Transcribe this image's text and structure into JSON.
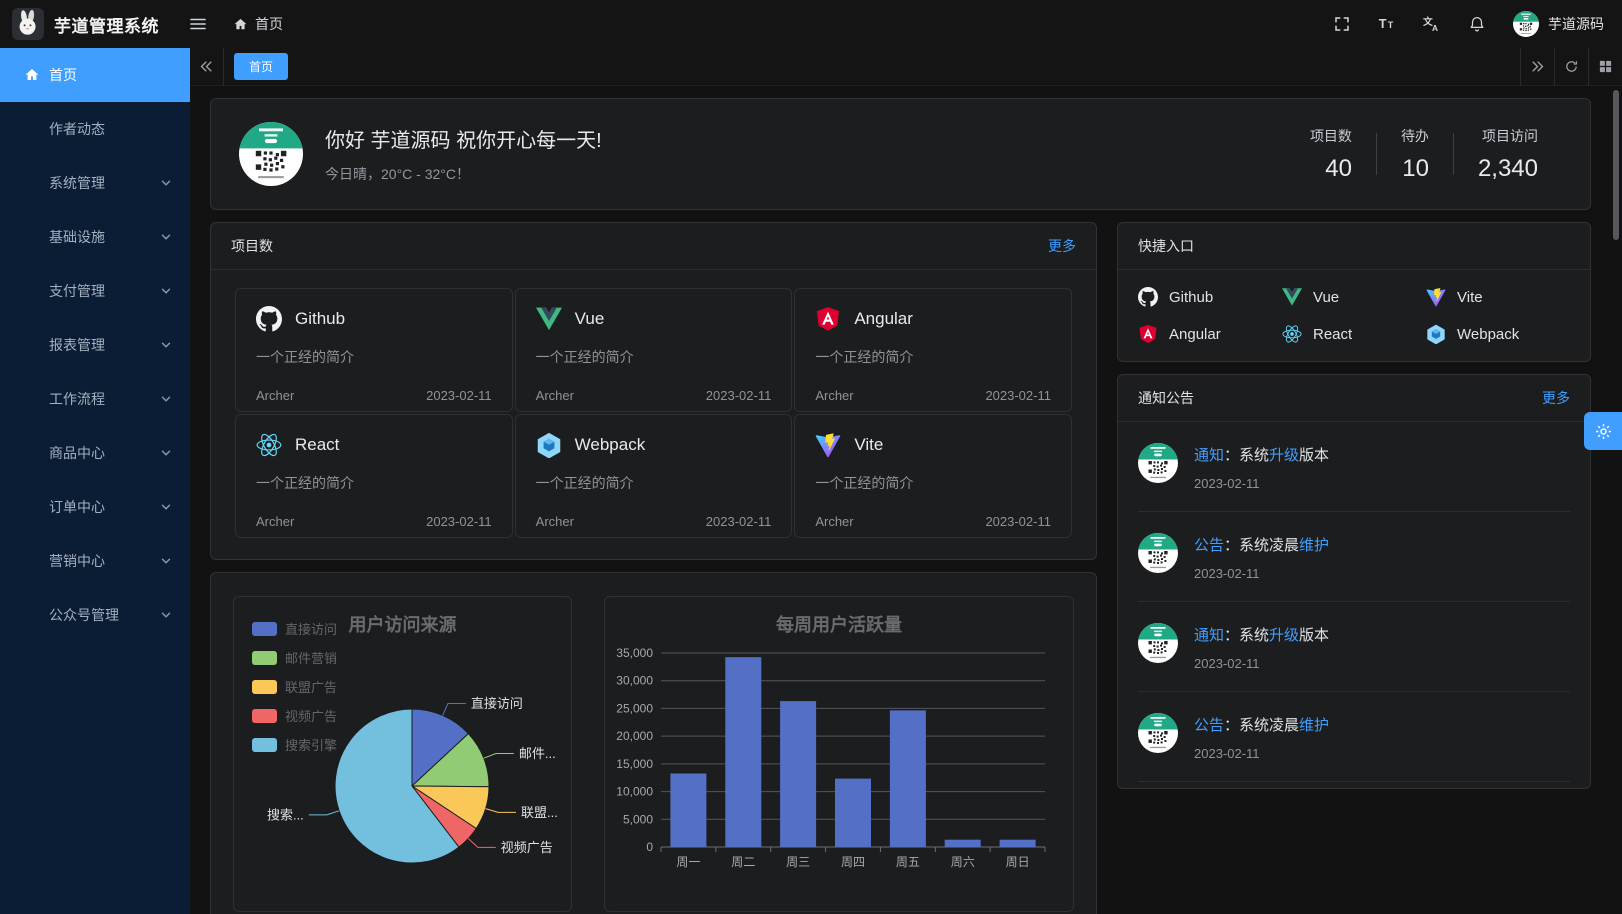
{
  "colors": {
    "accent": "#409eff",
    "sidebar_bg": "#0b1d35",
    "card_bg": "#1c1d1f",
    "page_bg": "#121212"
  },
  "topbar": {
    "title": "芋道管理系统",
    "logo_icon": "rabbit-logo",
    "menu_icon": "hamburger-icon",
    "breadcrumb": {
      "icon": "home-icon",
      "label": "首页"
    },
    "action_icons": [
      "fullscreen-icon",
      "font-size-icon",
      "locale-icon",
      "bell-icon"
    ],
    "user": {
      "avatar_icon": "qr-avatar",
      "name": "芋道源码"
    }
  },
  "sidebar": {
    "items": [
      {
        "label": "首页",
        "icon": "home-icon",
        "active": true,
        "children": false
      },
      {
        "label": "作者动态",
        "active": false,
        "children": false
      },
      {
        "label": "系统管理",
        "active": false,
        "children": true
      },
      {
        "label": "基础设施",
        "active": false,
        "children": true
      },
      {
        "label": "支付管理",
        "active": false,
        "children": true
      },
      {
        "label": "报表管理",
        "active": false,
        "children": true
      },
      {
        "label": "工作流程",
        "active": false,
        "children": true
      },
      {
        "label": "商品中心",
        "active": false,
        "children": true
      },
      {
        "label": "订单中心",
        "active": false,
        "children": true
      },
      {
        "label": "营销中心",
        "active": false,
        "children": true
      },
      {
        "label": "公众号管理",
        "active": false,
        "children": true
      }
    ]
  },
  "tabbar": {
    "collapse_icon": "chevron-double-left-icon",
    "tabs": [
      {
        "label": "首页",
        "active": true
      }
    ],
    "right_icons": [
      "chevron-double-right-icon",
      "refresh-icon",
      "grid-icon"
    ]
  },
  "welcome": {
    "avatar_icon": "qr-avatar",
    "greeting": "你好 芋道源码 祝你开心每一天!",
    "weather": "今日晴，20°C - 32°C！",
    "stats": [
      {
        "label": "项目数",
        "value": "40"
      },
      {
        "label": "待办",
        "value": "10"
      },
      {
        "label": "项目访问",
        "value": "2,340"
      }
    ]
  },
  "projects": {
    "header": "项目数",
    "more": "更多",
    "items": [
      {
        "name": "Github",
        "icon": "github-icon",
        "desc": "一个正经的简介",
        "author": "Archer",
        "date": "2023-02-11"
      },
      {
        "name": "Vue",
        "icon": "vue-icon",
        "desc": "一个正经的简介",
        "author": "Archer",
        "date": "2023-02-11"
      },
      {
        "name": "Angular",
        "icon": "angular-icon",
        "desc": "一个正经的简介",
        "author": "Archer",
        "date": "2023-02-11"
      },
      {
        "name": "React",
        "icon": "react-icon",
        "desc": "一个正经的简介",
        "author": "Archer",
        "date": "2023-02-11"
      },
      {
        "name": "Webpack",
        "icon": "webpack-icon",
        "desc": "一个正经的简介",
        "author": "Archer",
        "date": "2023-02-11"
      },
      {
        "name": "Vite",
        "icon": "vite-icon",
        "desc": "一个正经的简介",
        "author": "Archer",
        "date": "2023-02-11"
      }
    ]
  },
  "shortcuts": {
    "header": "快捷入口",
    "items": [
      {
        "name": "Github",
        "icon": "github-icon"
      },
      {
        "name": "Vue",
        "icon": "vue-icon"
      },
      {
        "name": "Vite",
        "icon": "vite-icon"
      },
      {
        "name": "Angular",
        "icon": "angular-icon"
      },
      {
        "name": "React",
        "icon": "react-icon"
      },
      {
        "name": "Webpack",
        "icon": "webpack-icon"
      }
    ]
  },
  "notices": {
    "header": "通知公告",
    "more": "更多",
    "items": [
      {
        "avatar_icon": "qr-avatar",
        "date": "2023-02-11",
        "segments": [
          {
            "text": "通知",
            "highlight": true
          },
          {
            "text": "：系统",
            "highlight": false
          },
          {
            "text": "升级",
            "highlight": true
          },
          {
            "text": "版本",
            "highlight": false
          }
        ]
      },
      {
        "avatar_icon": "qr-avatar",
        "date": "2023-02-11",
        "segments": [
          {
            "text": "公告",
            "highlight": true
          },
          {
            "text": "：系统凌晨",
            "highlight": false
          },
          {
            "text": "维护",
            "highlight": true
          }
        ]
      },
      {
        "avatar_icon": "qr-avatar",
        "date": "2023-02-11",
        "segments": [
          {
            "text": "通知",
            "highlight": true
          },
          {
            "text": "：系统",
            "highlight": false
          },
          {
            "text": "升级",
            "highlight": true
          },
          {
            "text": "版本",
            "highlight": false
          }
        ]
      },
      {
        "avatar_icon": "qr-avatar",
        "date": "2023-02-11",
        "segments": [
          {
            "text": "公告",
            "highlight": true
          },
          {
            "text": "：系统凌晨",
            "highlight": false
          },
          {
            "text": "维护",
            "highlight": true
          }
        ]
      }
    ]
  },
  "gear_fab_icon": "gear-icon",
  "chart_data": [
    {
      "type": "pie",
      "title": "用户访问来源",
      "legend_position": "top-left",
      "legend": [
        "直接访问",
        "邮件营销",
        "联盟广告",
        "视频广告",
        "搜索引擎"
      ],
      "series": [
        {
          "name": "直接访问",
          "value": 335
        },
        {
          "name": "邮件营销",
          "value": 310
        },
        {
          "name": "联盟广告",
          "value": 234
        },
        {
          "name": "视频广告",
          "value": 135
        },
        {
          "name": "搜索引擎",
          "value": 1548
        }
      ],
      "display_labels": [
        "直接访问",
        "邮件...",
        "联盟...",
        "视频广告",
        "搜索..."
      ],
      "colors": [
        "#5470c6",
        "#91cc75",
        "#fac858",
        "#ee6666",
        "#73c0de"
      ]
    },
    {
      "type": "bar",
      "title": "每周用户活跃量",
      "categories": [
        "周一",
        "周二",
        "周三",
        "周四",
        "周五",
        "周六",
        "周日"
      ],
      "values": [
        13253,
        34235,
        26321,
        12340,
        24643,
        1322,
        1324
      ],
      "ylim": [
        0,
        35000
      ],
      "ytick_step": 5000,
      "bar_color": "#5470c6",
      "grid": true,
      "legend_position": "none"
    }
  ]
}
